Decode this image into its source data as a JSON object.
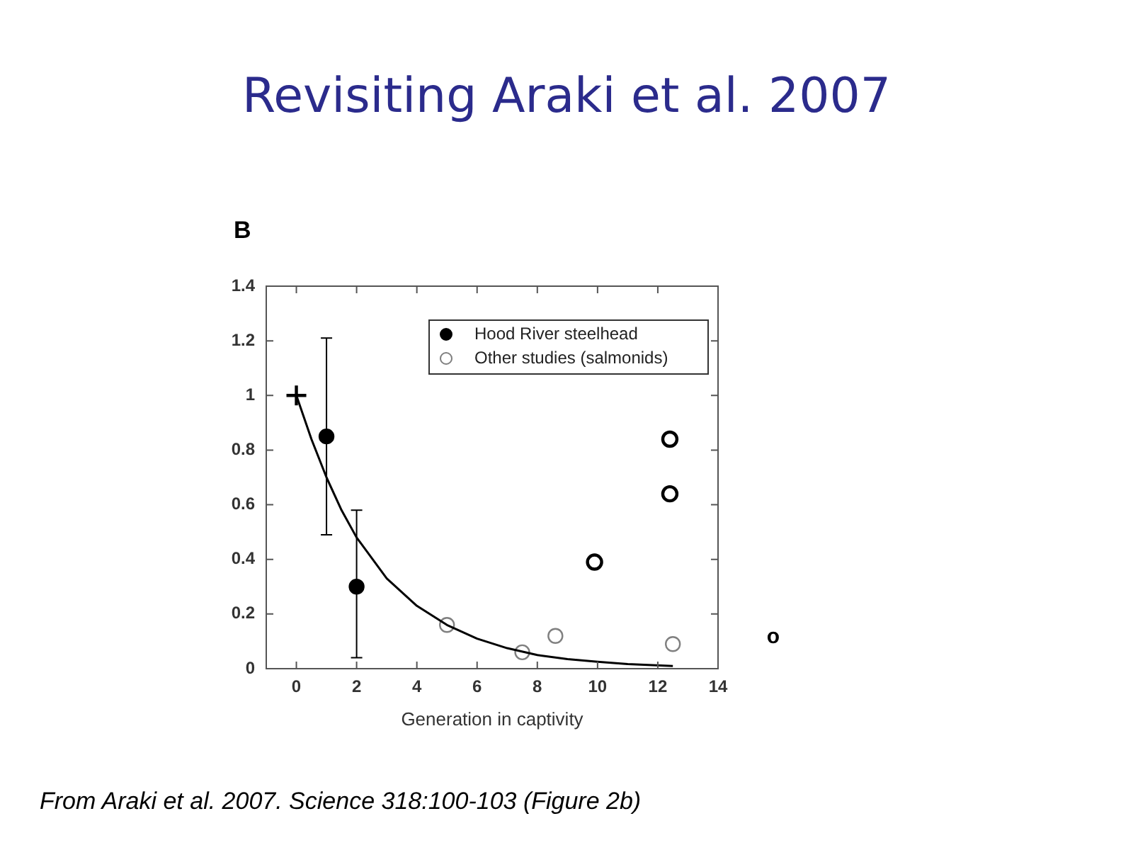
{
  "chart_data": {
    "type": "scatter",
    "title": "Revisiting Araki et al. 2007",
    "xlabel": "Generation in captivity",
    "annotations": [
      "B",
      "From Araki et al. 2007. Science 318:100-103 (Figure 2b)",
      "o"
    ],
    "xlim": [
      -1,
      14
    ],
    "xticks": [
      0,
      2,
      4,
      6,
      8,
      10,
      12,
      14
    ],
    "ylim": [
      0,
      1.4
    ],
    "yticks": [
      0,
      0.2,
      0.4,
      0.6,
      0.8,
      1,
      1.2,
      1.4
    ],
    "grid": false,
    "legend": "top right",
    "series": [
      {
        "type": "line",
        "color": "#000000",
        "marker": "none",
        "x": [
          0,
          0.5,
          1,
          1.5,
          2,
          3,
          4,
          5,
          6,
          7,
          8,
          9,
          10,
          11,
          12.5
        ],
        "values": [
          1,
          0.84,
          0.7,
          0.58,
          0.48,
          0.33,
          0.23,
          0.16,
          0.11,
          0.075,
          0.05,
          0.035,
          0.025,
          0.017,
          0.01
        ]
      },
      {
        "color": "#000000",
        "marker": "cross",
        "x": [
          0
        ],
        "values": [
          1
        ]
      },
      {
        "name": "Hood River steelhead",
        "color": "#000000",
        "marker": "circle",
        "x": [
          1,
          2
        ],
        "values": [
          0.85,
          0.3
        ],
        "errors": [
          [
            0.49,
            1.21
          ],
          [
            0.04,
            0.58
          ]
        ]
      },
      {
        "name": "Other studies (salmonids)",
        "color": "#808080",
        "marker": "circle",
        "x": [
          5,
          7.5,
          8.6,
          12.5
        ],
        "values": [
          0.16,
          0.06,
          0.12,
          0.09
        ]
      },
      {
        "color": "#000000",
        "marker": "circle",
        "x": [
          12.4,
          12.4,
          9.9
        ],
        "values": [
          0.84,
          0.64,
          0.39
        ]
      }
    ]
  }
}
